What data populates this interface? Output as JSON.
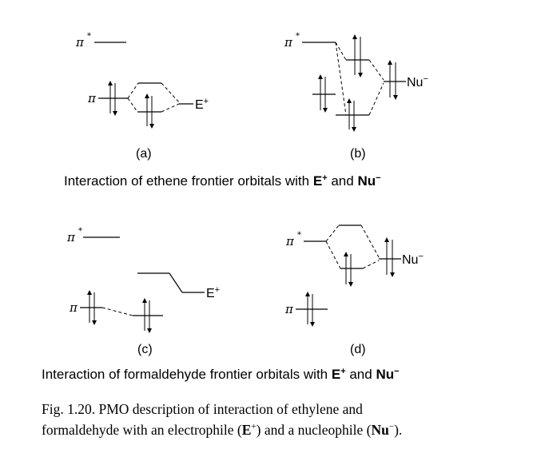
{
  "labels": {
    "pi": "π",
    "pi_star": "π",
    "star": "*",
    "electrophile": "E",
    "electrophile_charge": "+",
    "nucleophile": "Nu",
    "nucleophile_charge": "−"
  },
  "panels": {
    "a": "(a)",
    "b": "(b)",
    "c": "(c)",
    "d": "(d)"
  },
  "captions": {
    "ethene_text": "Interaction of ethene frontier orbitals with ",
    "ethene_e": "E",
    "ethene_e_charge": "+",
    "ethene_and": " and ",
    "ethene_nu": "Nu",
    "ethene_nu_charge": "−",
    "formaldehyde_text": "Interaction of formaldehyde frontier orbitals with ",
    "formaldehyde_e": "E",
    "formaldehyde_e_charge": "+",
    "formaldehyde_and": " and ",
    "formaldehyde_nu": "Nu",
    "formaldehyde_nu_charge": "−"
  },
  "figure_caption": {
    "line1": "Fig.  1.20. PMO  description  of  interaction  of  ethylene  and",
    "line2_a": "formaldehyde with an electrophile (",
    "line2_e": "E",
    "line2_e_charge": "+",
    "line2_b": ") and a nucleophile (",
    "line2_nu": "Nu",
    "line2_nu_charge": "−",
    "line2_c": ")."
  }
}
